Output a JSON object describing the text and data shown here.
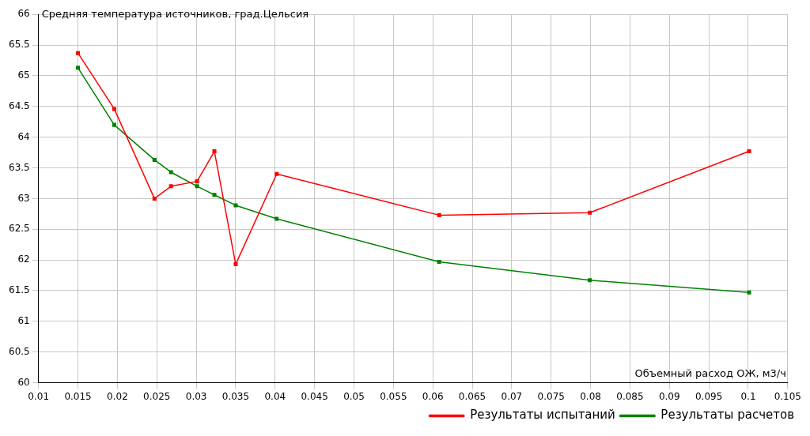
{
  "chart_data": {
    "type": "line",
    "xlabel": "Объемный расход ОЖ, м3/ч",
    "ylabel": "Средняя температура источников, град.Цельсия",
    "xlim": [
      0.01,
      0.105
    ],
    "xticks": [
      0.01,
      0.015,
      0.02,
      0.025,
      0.03,
      0.035,
      0.04,
      0.045,
      0.05,
      0.055,
      0.06,
      0.065,
      0.07,
      0.075,
      0.08,
      0.085,
      0.09,
      0.095,
      0.1,
      0.105
    ],
    "ylim": [
      60,
      66
    ],
    "yticks": [
      60,
      60.5,
      61,
      61.5,
      62,
      62.5,
      63,
      63.5,
      64,
      64.5,
      65,
      65.5,
      66
    ],
    "grid": true,
    "legend": "bottom right",
    "marker": "square",
    "line_style": "solid",
    "x": [
      0.015,
      0.0196,
      0.0247,
      0.0268,
      0.0301,
      0.0323,
      0.035,
      0.0402,
      0.0608,
      0.0799,
      0.1001
    ],
    "series": [
      {
        "name": "Результаты испытаний",
        "color": "#ff0000",
        "values": [
          65.37,
          64.46,
          63.0,
          63.2,
          63.28,
          63.77,
          61.93,
          63.4,
          62.73,
          62.77,
          63.77
        ]
      },
      {
        "name": "Результаты расчетов",
        "color": "#008000",
        "values": [
          65.13,
          64.2,
          63.63,
          63.43,
          63.2,
          63.06,
          62.89,
          62.67,
          61.97,
          61.67,
          61.47
        ]
      }
    ]
  }
}
